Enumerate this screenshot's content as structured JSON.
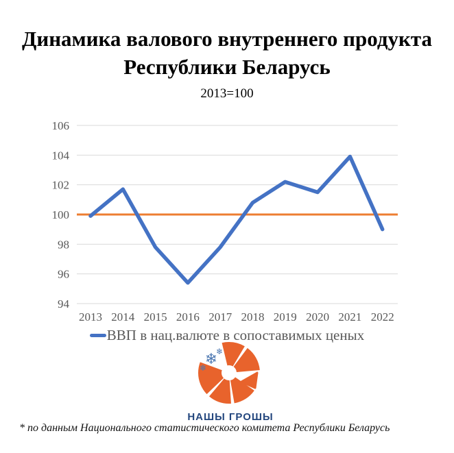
{
  "header": {
    "title": "Динамика валового внутреннего продукта Республики Беларусь",
    "subtitle": "2013=100"
  },
  "chart_data": {
    "type": "line",
    "title": "Динамика валового внутреннего продукта Республики Беларусь",
    "subtitle": "2013=100",
    "categories": [
      "2013",
      "2014",
      "2015",
      "2016",
      "2017",
      "2018",
      "2019",
      "2020",
      "2021",
      "2022"
    ],
    "series": [
      {
        "name": "ВВП в нац.валюте в сопоставимых ценых",
        "color": "#4472C4",
        "values": [
          99.9,
          101.7,
          97.8,
          95.4,
          97.8,
          100.8,
          102.2,
          101.5,
          103.9,
          99.0
        ]
      }
    ],
    "reference_line": {
      "value": 100,
      "color": "#ED7D31"
    },
    "ylim": [
      94,
      106
    ],
    "yticks": [
      94,
      96,
      98,
      100,
      102,
      104,
      106
    ],
    "grid": true,
    "legend_position": "bottom",
    "xlabel": "",
    "ylabel": ""
  },
  "logo": {
    "text": "НАШЫ ГРОШЫ"
  },
  "footer": {
    "note": "* по данным Национального статистического комитета Республики Беларусь"
  },
  "colors": {
    "gdp_line": "#4472C4",
    "reference_line": "#ED7D31",
    "gridline": "#D9D9D9",
    "tick_text": "#595959",
    "legend_text": "#595959",
    "logo_orange": "#E8632C",
    "logo_snowflake_blue": "#4E79B2",
    "logo_navy": "#24477E"
  }
}
